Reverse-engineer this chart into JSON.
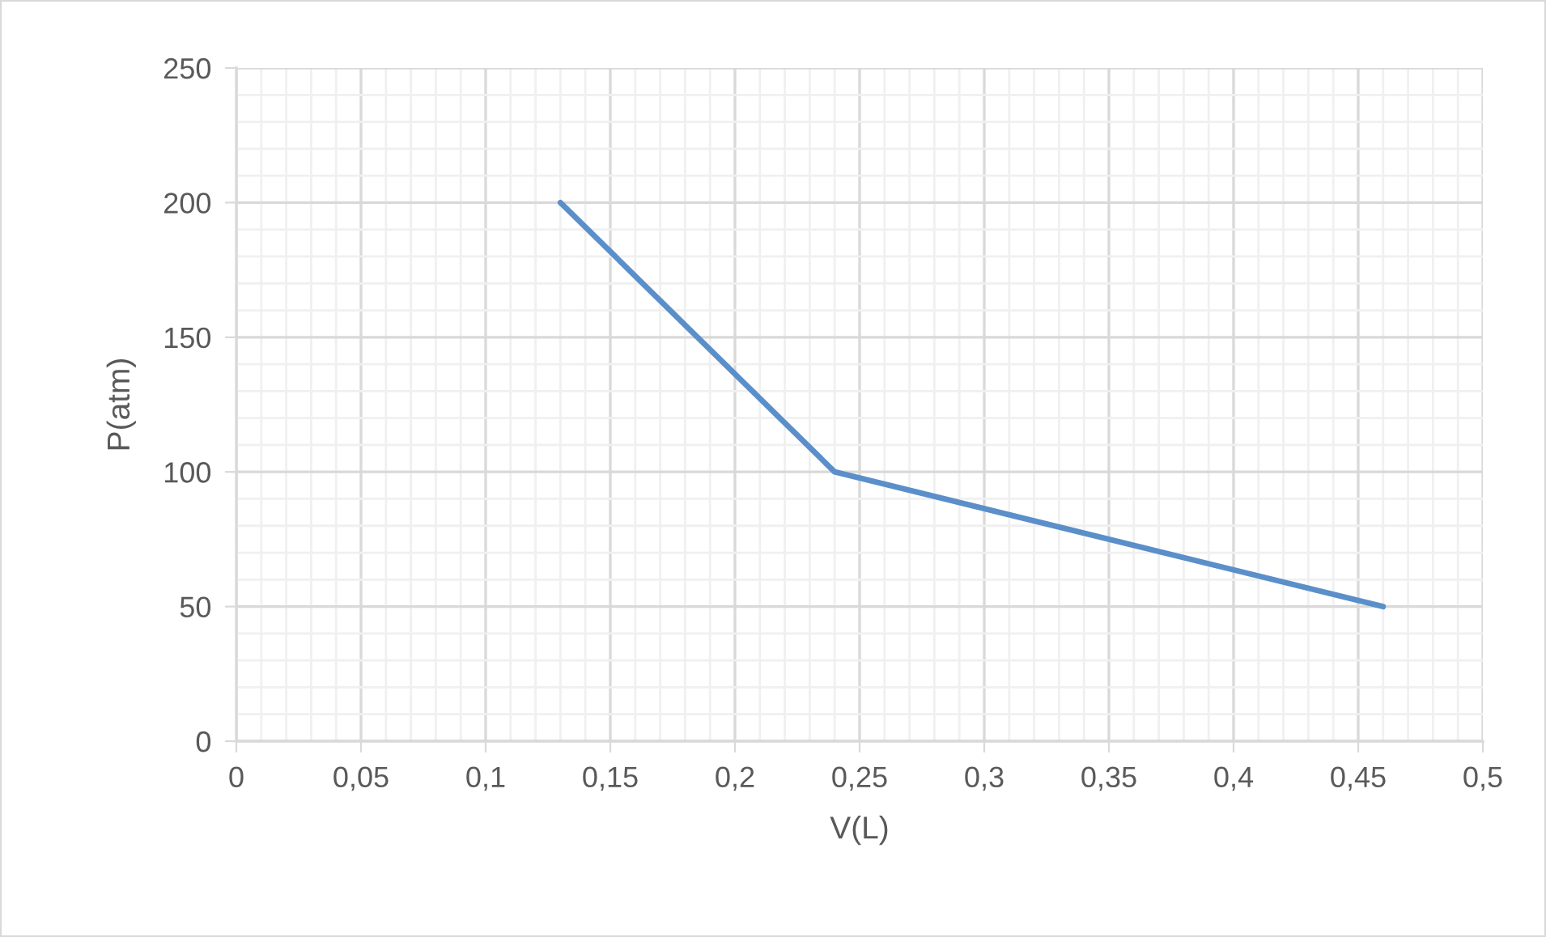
{
  "chart_data": {
    "type": "line",
    "xlabel": "V(L)",
    "ylabel": "P(atm)",
    "series": [
      {
        "color": "#5b8fc9",
        "x": [
          0.13,
          0.24,
          0.46
        ],
        "values": [
          200,
          100,
          50
        ]
      }
    ],
    "xlim": [
      0,
      0.5
    ],
    "ylim": [
      0,
      250
    ],
    "xticks": [
      0,
      {
        "value": 0.05,
        "label": "0,05"
      },
      {
        "value": 0.1,
        "label": "0,1"
      },
      {
        "value": 0.15,
        "label": "0,15"
      },
      {
        "value": 0.2,
        "label": "0,2"
      },
      {
        "value": 0.25,
        "label": "0,25"
      },
      {
        "value": 0.3,
        "label": "0,3"
      },
      {
        "value": 0.35,
        "label": "0,35"
      },
      {
        "value": 0.4,
        "label": "0,4"
      },
      {
        "value": 0.45,
        "label": "0,45"
      },
      {
        "value": 0.5,
        "label": "0,5"
      }
    ],
    "yticks": [
      0,
      50,
      100,
      150,
      200,
      250
    ],
    "grid": true,
    "marker": "none",
    "line_style": "solid"
  }
}
